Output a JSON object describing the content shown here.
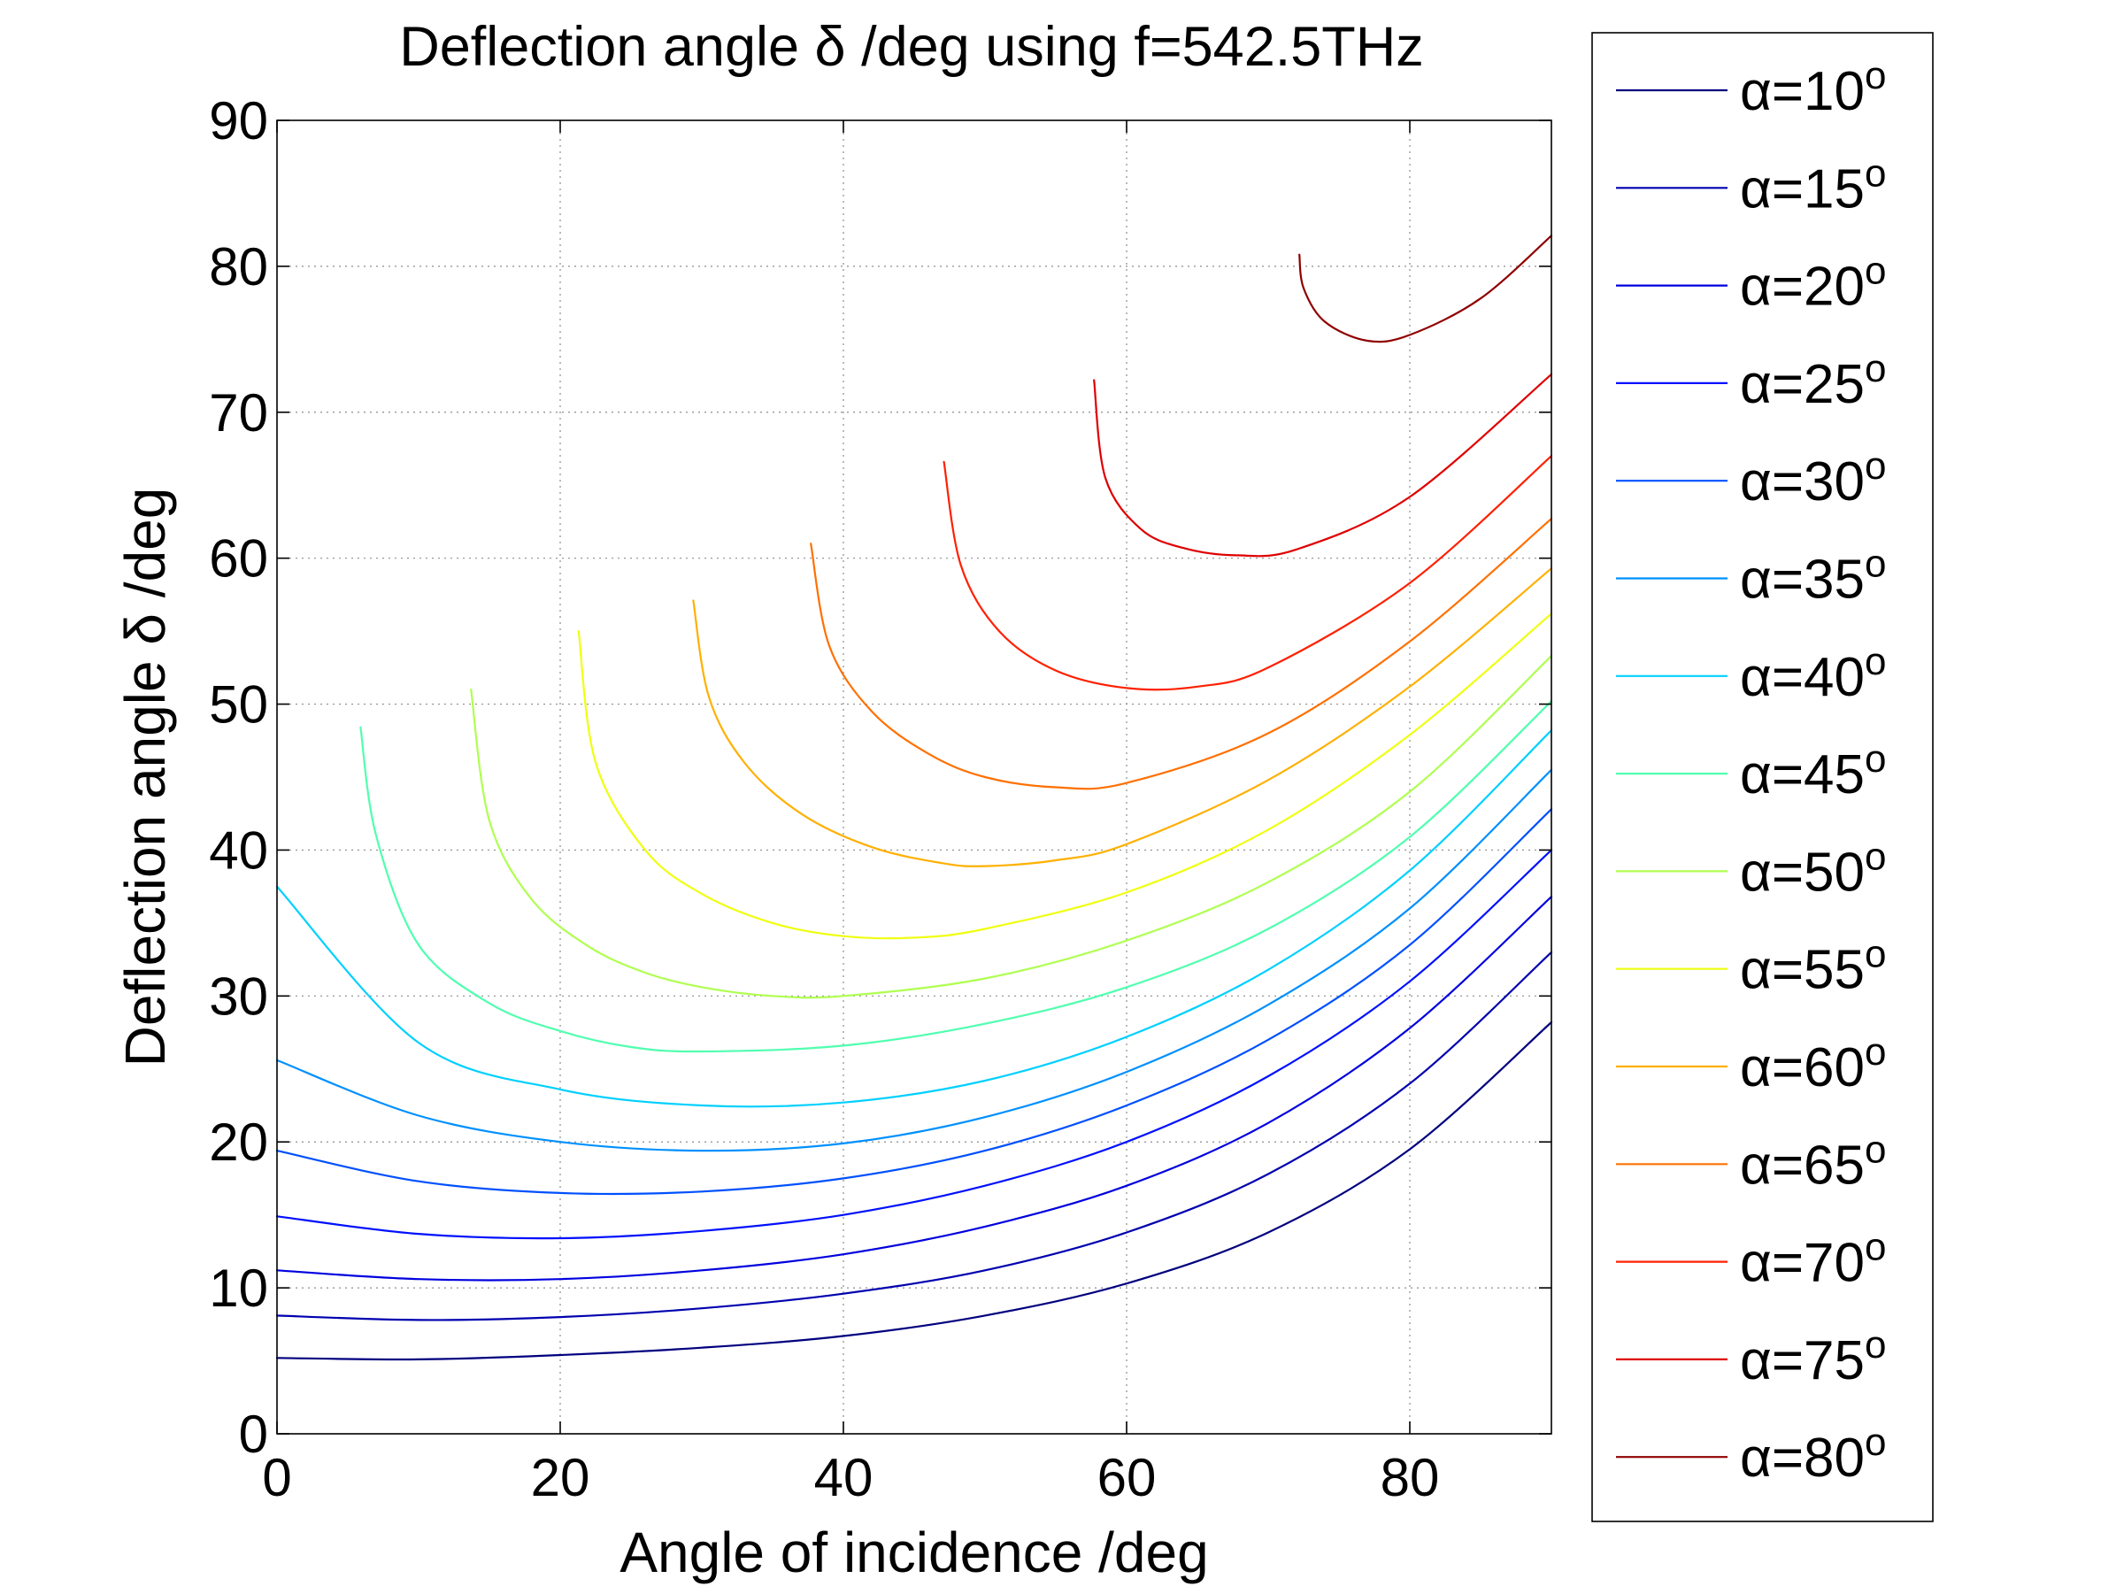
{
  "chart_data": {
    "type": "line",
    "title": "Deflection angle δ /deg using f=542.5THz",
    "xlabel": "Angle of incidence /deg",
    "ylabel": "Deflection angle δ /deg",
    "xlim": [
      0,
      90
    ],
    "ylim": [
      0,
      90
    ],
    "xticks": [
      "0",
      "20",
      "40",
      "60",
      "80"
    ],
    "yticks": [
      "0",
      "10",
      "20",
      "30",
      "40",
      "50",
      "60",
      "70",
      "80",
      "90"
    ],
    "grid": true,
    "legend_position": "outside-right",
    "series": [
      {
        "name": "α=10°",
        "label_prefix": "α=10",
        "label_suffix": "o",
        "color": "#00007f",
        "x": [
          0,
          10,
          20,
          30,
          40,
          50,
          60,
          70,
          80,
          90
        ],
        "y": [
          5.2,
          5.1,
          5.4,
          5.9,
          6.7,
          8.1,
          10.3,
          13.8,
          19.5,
          28.2
        ]
      },
      {
        "name": "α=15°",
        "label_prefix": "α=15",
        "label_suffix": "o",
        "color": "#0000af",
        "x": [
          0,
          10,
          20,
          30,
          40,
          50,
          60,
          70,
          80,
          90
        ],
        "y": [
          8.1,
          7.8,
          8.0,
          8.6,
          9.6,
          11.2,
          13.8,
          17.8,
          24.0,
          33.0
        ]
      },
      {
        "name": "α=20°",
        "label_prefix": "α=20",
        "label_suffix": "o",
        "color": "#0000df",
        "x": [
          0,
          10,
          20,
          30,
          40,
          50,
          60,
          70,
          80,
          90
        ],
        "y": [
          11.2,
          10.6,
          10.6,
          11.2,
          12.3,
          14.2,
          17.0,
          21.3,
          27.8,
          36.8
        ]
      },
      {
        "name": "α=25°",
        "label_prefix": "α=25",
        "label_suffix": "o",
        "color": "#0010ff",
        "x": [
          0,
          10,
          20,
          30,
          40,
          50,
          60,
          70,
          80,
          90
        ],
        "y": [
          14.9,
          13.7,
          13.4,
          13.9,
          15.0,
          17.0,
          20.0,
          24.5,
          31.0,
          40.0
        ]
      },
      {
        "name": "α=30°",
        "label_prefix": "α=30",
        "label_suffix": "o",
        "color": "#0050ff",
        "x": [
          0,
          10,
          20,
          30,
          40,
          50,
          60,
          70,
          80,
          90
        ],
        "y": [
          19.4,
          17.3,
          16.5,
          16.6,
          17.5,
          19.4,
          22.5,
          27.0,
          33.5,
          42.8
        ]
      },
      {
        "name": "α=35°",
        "label_prefix": "α=35",
        "label_suffix": "o",
        "color": "#0090ff",
        "x": [
          0,
          10,
          20,
          30,
          40,
          50,
          60,
          70,
          80,
          90
        ],
        "y": [
          25.6,
          21.8,
          20.0,
          19.4,
          19.9,
          21.7,
          24.8,
          29.4,
          36.0,
          45.5
        ]
      },
      {
        "name": "α=40°",
        "label_prefix": "α=40",
        "label_suffix": "o",
        "color": "#00d0ff",
        "x": [
          0,
          10,
          20,
          30,
          40,
          50,
          60,
          70,
          80,
          90
        ],
        "y": [
          37.5,
          26.8,
          23.6,
          22.5,
          22.7,
          24.2,
          27.2,
          31.8,
          38.6,
          48.2
        ]
      },
      {
        "name": "α=45°",
        "label_prefix": "α=45",
        "label_suffix": "o",
        "color": "#50ffaf",
        "x": [
          5.9,
          7.0,
          10,
          15,
          20,
          25,
          30,
          40,
          50,
          60,
          70,
          80,
          90
        ],
        "y": [
          48.4,
          41.0,
          33.5,
          29.5,
          27.6,
          26.5,
          26.2,
          26.6,
          28.1,
          30.6,
          34.6,
          40.9,
          50.2
        ]
      },
      {
        "name": "α=50°",
        "label_prefix": "α=50",
        "label_suffix": "o",
        "color": "#afff50",
        "x": [
          13.7,
          15,
          18,
          22,
          26,
          30,
          35,
          40,
          50,
          60,
          70,
          80,
          90
        ],
        "y": [
          51.0,
          42.0,
          36.6,
          33.4,
          31.6,
          30.6,
          30.0,
          30.0,
          31.2,
          33.8,
          37.8,
          44.0,
          53.3
        ]
      },
      {
        "name": "α=55°",
        "label_prefix": "α=55",
        "label_suffix": "o",
        "color": "#efff10",
        "x": [
          21.3,
          22.5,
          26,
          30,
          35,
          40,
          45,
          50,
          60,
          70,
          80,
          90
        ],
        "y": [
          55.0,
          46.0,
          40.0,
          37.0,
          35.0,
          34.1,
          34.0,
          34.6,
          37.1,
          41.4,
          47.9,
          56.2
        ]
      },
      {
        "name": "α=60°",
        "label_prefix": "α=60",
        "label_suffix": "o",
        "color": "#ffb000",
        "x": [
          29.4,
          30.5,
          33,
          37,
          42,
          47,
          50,
          55,
          60,
          70,
          80,
          90
        ],
        "y": [
          57.1,
          50.5,
          46.0,
          42.5,
          40.2,
          39.1,
          38.9,
          39.3,
          40.4,
          44.8,
          51.2,
          59.3
        ]
      },
      {
        "name": "α=65°",
        "label_prefix": "α=65",
        "label_suffix": "o",
        "color": "#ff7000",
        "x": [
          37.7,
          39,
          42,
          46,
          50,
          55,
          60,
          70,
          80,
          90
        ],
        "y": [
          61.0,
          54.0,
          49.5,
          46.6,
          45.0,
          44.3,
          44.6,
          48.0,
          54.3,
          62.7
        ]
      },
      {
        "name": "α=70°",
        "label_prefix": "α=70",
        "label_suffix": "o",
        "color": "#ff2000",
        "x": [
          47.1,
          48.3,
          51,
          55,
          60,
          65,
          70,
          80,
          90
        ],
        "y": [
          66.6,
          59.5,
          55.0,
          52.3,
          51.1,
          51.2,
          52.5,
          58.3,
          67.0
        ]
      },
      {
        "name": "α=75°",
        "label_prefix": "α=75",
        "label_suffix": "o",
        "color": "#df0000",
        "x": [
          57.7,
          58.5,
          61,
          64,
          67.7,
          72,
          80,
          90
        ],
        "y": [
          72.2,
          65.5,
          62.0,
          60.7,
          60.2,
          60.6,
          64.2,
          72.6
        ]
      },
      {
        "name": "α=80°",
        "label_prefix": "α=80",
        "label_suffix": "o",
        "color": "#8f0000",
        "x": [
          72.2,
          72.5,
          74,
          77,
          80,
          85,
          90
        ],
        "y": [
          80.8,
          78.5,
          76.2,
          74.9,
          75.3,
          77.8,
          82.1
        ]
      }
    ]
  }
}
